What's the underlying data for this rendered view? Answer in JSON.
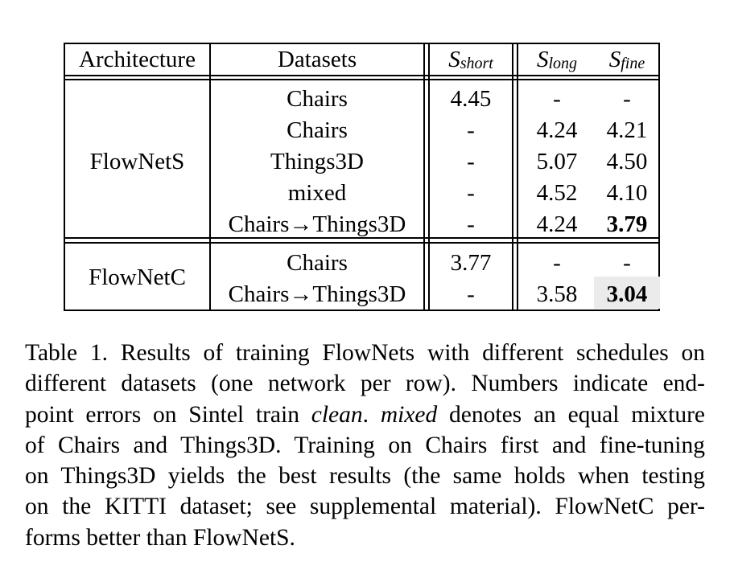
{
  "table": {
    "headers": {
      "architecture": "Architecture",
      "datasets": "Datasets",
      "s_short": {
        "base": "S",
        "sub": "short"
      },
      "s_long": {
        "base": "S",
        "sub": "long"
      },
      "s_fine": {
        "base": "S",
        "sub": "fine"
      }
    },
    "groups": [
      {
        "architecture": "FlowNetS",
        "rows": [
          {
            "dataset": "Chairs",
            "s_short": "4.45",
            "s_long": "-",
            "s_fine": "-"
          },
          {
            "dataset": "Chairs",
            "s_short": "-",
            "s_long": "4.24",
            "s_fine": "4.21"
          },
          {
            "dataset": "Things3D",
            "s_short": "-",
            "s_long": "5.07",
            "s_fine": "4.50"
          },
          {
            "dataset": "mixed",
            "s_short": "-",
            "s_long": "4.52",
            "s_fine": "4.10"
          },
          {
            "dataset": "Chairs→Things3D",
            "s_short": "-",
            "s_long": "4.24",
            "s_fine": "3.79",
            "s_fine_bold": true
          }
        ]
      },
      {
        "architecture": "FlowNetC",
        "rows": [
          {
            "dataset": "Chairs",
            "s_short": "3.77",
            "s_long": "-",
            "s_fine": "-"
          },
          {
            "dataset": "Chairs→Things3D",
            "s_short": "-",
            "s_long": "3.58",
            "s_fine": "3.04",
            "s_fine_bold": true,
            "s_fine_shaded": true
          }
        ]
      }
    ]
  },
  "caption": {
    "line1": "Table 1.  Results of training FlowNets with different schedules on",
    "line2": "different datasets (one network per row).  Numbers indicate end-",
    "line3_a": "point errors on Sintel train ",
    "line3_b": "clean",
    "line3_c": ". ",
    "line3_d": "mixed",
    "line3_e": " denotes an equal mixture",
    "line4": "of Chairs and Things3D. Training on Chairs first and fine-tuning",
    "line5": "on Things3D yields the best results (the same holds when testing",
    "line6": "on the KITTI dataset; see supplemental material). FlowNetC per-",
    "line7": "forms better than FlowNetS."
  }
}
